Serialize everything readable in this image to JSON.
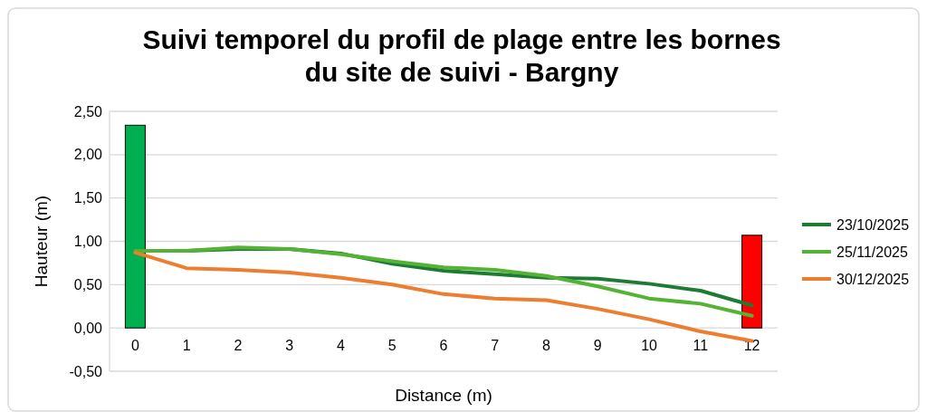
{
  "chart_data": {
    "type": "line",
    "title": "Suivi temporel du profil de plage entre les bornes\ndu site de suivi - Bargny",
    "xlabel": "Distance (m)",
    "ylabel": "Hauteur (m)",
    "categories": [
      "0",
      "1",
      "2",
      "3",
      "4",
      "5",
      "6",
      "7",
      "8",
      "9",
      "10",
      "11",
      "12"
    ],
    "ylim": [
      -0.5,
      2.5
    ],
    "yticks": [
      {
        "value": -0.5,
        "label": "-0,50"
      },
      {
        "value": 0,
        "label": "0,00"
      },
      {
        "value": 0.5,
        "label": "0,50"
      },
      {
        "value": 1,
        "label": "1,00"
      },
      {
        "value": 1.5,
        "label": "1,50"
      },
      {
        "value": 2,
        "label": "2,00"
      },
      {
        "value": 2.5,
        "label": "2,50"
      }
    ],
    "grid": "y",
    "legend": "right",
    "series": [
      {
        "type": "bar",
        "colors": [
          "#00b050",
          null,
          null,
          null,
          null,
          null,
          null,
          null,
          null,
          null,
          null,
          null,
          "#ff0000"
        ],
        "values": [
          2.34,
          null,
          null,
          null,
          null,
          null,
          null,
          null,
          null,
          null,
          null,
          null,
          1.07
        ]
      },
      {
        "name": "23/10/2025",
        "color": "#1e7b34",
        "values": [
          0.89,
          0.89,
          0.91,
          0.91,
          0.86,
          0.74,
          0.66,
          0.62,
          0.58,
          0.57,
          0.51,
          0.43,
          0.26
        ]
      },
      {
        "name": "25/11/2025",
        "color": "#54b234",
        "values": [
          0.89,
          0.89,
          0.93,
          0.91,
          0.85,
          0.77,
          0.7,
          0.67,
          0.6,
          0.48,
          0.34,
          0.28,
          0.14
        ]
      },
      {
        "name": "30/12/2025",
        "color": "#ed7d31",
        "values": [
          0.87,
          0.69,
          0.67,
          0.64,
          0.58,
          0.5,
          0.39,
          0.34,
          0.32,
          0.22,
          0.1,
          -0.04,
          -0.15
        ]
      }
    ]
  }
}
